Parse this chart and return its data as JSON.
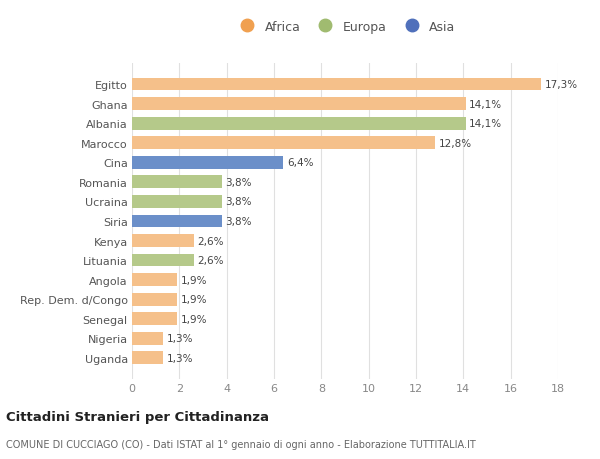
{
  "categories": [
    "Egitto",
    "Ghana",
    "Albania",
    "Marocco",
    "Cina",
    "Romania",
    "Ucraina",
    "Siria",
    "Kenya",
    "Lituania",
    "Angola",
    "Rep. Dem. d/Congo",
    "Senegal",
    "Nigeria",
    "Uganda"
  ],
  "values": [
    17.3,
    14.1,
    14.1,
    12.8,
    6.4,
    3.8,
    3.8,
    3.8,
    2.6,
    2.6,
    1.9,
    1.9,
    1.9,
    1.3,
    1.3
  ],
  "labels": [
    "17,3%",
    "14,1%",
    "14,1%",
    "12,8%",
    "6,4%",
    "3,8%",
    "3,8%",
    "3,8%",
    "2,6%",
    "2,6%",
    "1,9%",
    "1,9%",
    "1,9%",
    "1,3%",
    "1,3%"
  ],
  "continents": [
    "Africa",
    "Africa",
    "Europa",
    "Africa",
    "Asia",
    "Europa",
    "Europa",
    "Asia",
    "Africa",
    "Europa",
    "Africa",
    "Africa",
    "Africa",
    "Africa",
    "Africa"
  ],
  "colors": {
    "Africa": "#F5C08A",
    "Europa": "#B5C98A",
    "Asia": "#6B8FC9"
  },
  "legend_colors": {
    "Africa": "#F0A050",
    "Europa": "#A0BB70",
    "Asia": "#5070BB"
  },
  "xlim": [
    0,
    18
  ],
  "xticks": [
    0,
    2,
    4,
    6,
    8,
    10,
    12,
    14,
    16,
    18
  ],
  "title": "Cittadini Stranieri per Cittadinanza",
  "subtitle": "COMUNE DI CUCCIAGO (CO) - Dati ISTAT al 1° gennaio di ogni anno - Elaborazione TUTTITALIA.IT",
  "background_color": "#ffffff",
  "grid_color": "#e0e0e0"
}
